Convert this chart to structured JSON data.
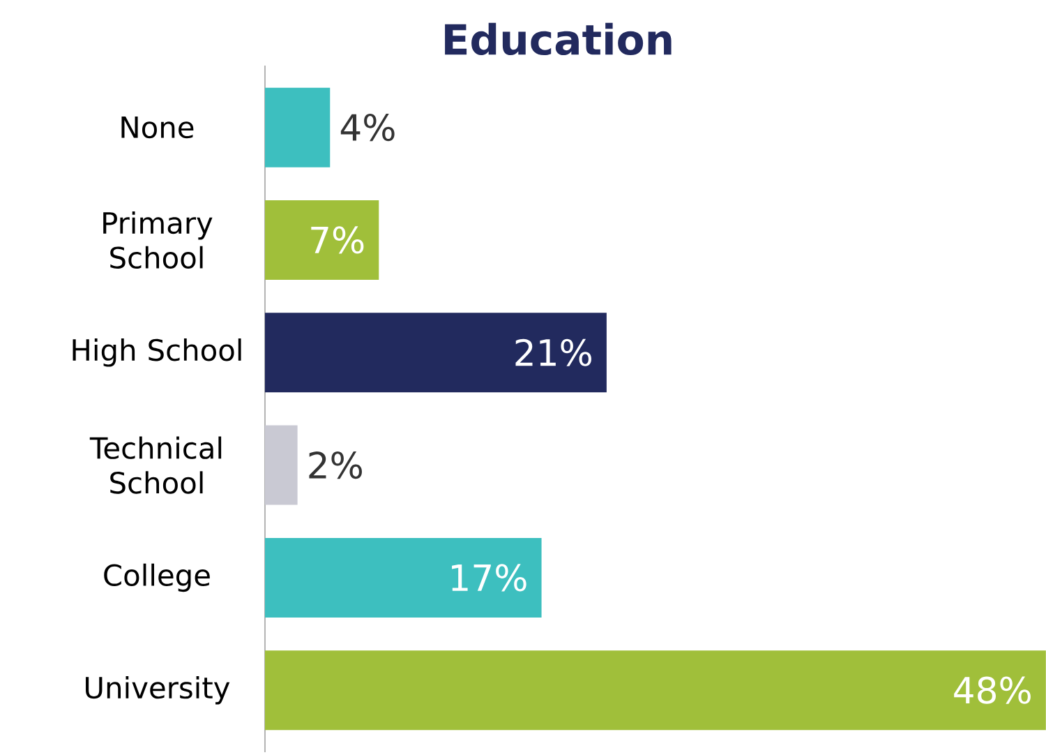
{
  "chart_data": {
    "type": "bar",
    "orientation": "horizontal",
    "title": "Education",
    "categories": [
      "None",
      "Primary School",
      "High School",
      "Technical School",
      "College",
      "University"
    ],
    "values": [
      4,
      7,
      21,
      2,
      17,
      48
    ],
    "value_labels": [
      "4%",
      "7%",
      "21%",
      "2%",
      "17%",
      "48%"
    ],
    "colors": [
      "#3dbfbf",
      "#a0bf3a",
      "#222a5e",
      "#c9c9d3",
      "#3dbfbf",
      "#a0bf3a"
    ],
    "xlim": [
      0,
      48
    ],
    "tick_labels": "y"
  }
}
